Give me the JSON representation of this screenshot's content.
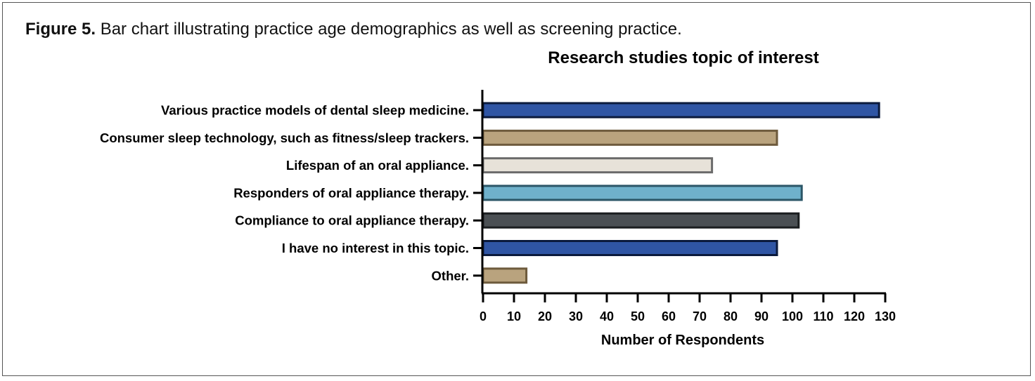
{
  "figure": {
    "label": "Figure 5.",
    "caption": "Bar chart illustrating practice age demographics as well as screening practice."
  },
  "chart_data": {
    "type": "bar",
    "orientation": "horizontal",
    "title": "Research studies topic of interest",
    "xlabel": "Number of Respondents",
    "ylabel": "",
    "xlim": [
      0,
      130
    ],
    "xticks": [
      "0",
      "10",
      "20",
      "30",
      "40",
      "50",
      "60",
      "70",
      "80",
      "90",
      "100",
      "110",
      "120",
      "130"
    ],
    "grid": false,
    "categories": [
      "Various practice models of dental sleep medicine.",
      "Consumer sleep technology, such as fitness/sleep trackers.",
      "Lifespan of an oral appliance.",
      "Responders of oral appliance therapy.",
      "Compliance to oral appliance therapy.",
      "I have no interest in this topic.",
      "Other."
    ],
    "values": [
      128,
      95,
      74,
      103,
      102,
      95,
      14
    ],
    "colors": [
      {
        "fill": "#2f55a4",
        "stroke": "#0b1a3c"
      },
      {
        "fill": "#b9a37e",
        "stroke": "#6d5a3c"
      },
      {
        "fill": "#e7e2d9",
        "stroke": "#6b6b6b"
      },
      {
        "fill": "#6fb1cb",
        "stroke": "#2b5667"
      },
      {
        "fill": "#4b5054",
        "stroke": "#1b1e20"
      },
      {
        "fill": "#2f55a4",
        "stroke": "#0b1a3c"
      },
      {
        "fill": "#b9a37e",
        "stroke": "#6d5a3c"
      }
    ]
  }
}
